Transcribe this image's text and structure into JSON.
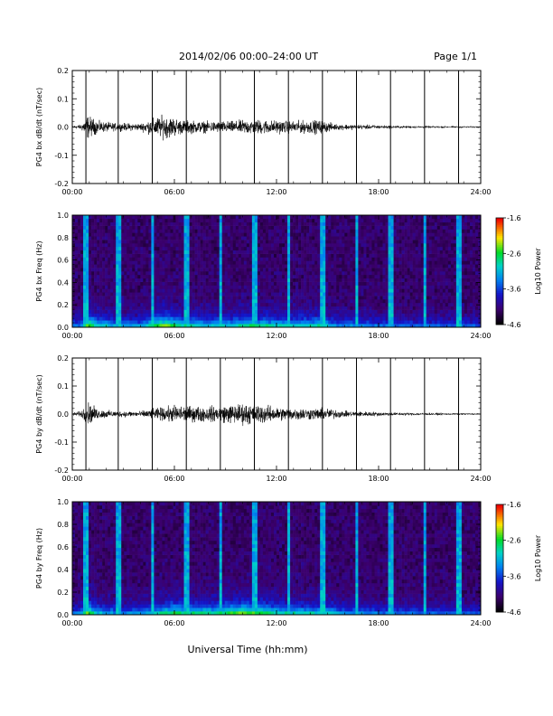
{
  "header": {
    "title": "2014/02/06  00:00–24:00 UT",
    "page": "Page 1/1"
  },
  "footer": {
    "xlabel": "Universal Time (hh:mm)"
  },
  "chart_data": [
    {
      "type": "line",
      "id": "bx-ts",
      "ylabel": "PG4 bx dB/dt (nT/sec)",
      "xlim": [
        0,
        24
      ],
      "ylim": [
        -0.2,
        0.2
      ],
      "xticks": [
        "00:00",
        "06:00",
        "12:00",
        "18:00",
        "24:00"
      ],
      "xtick_values": [
        0,
        6,
        12,
        18,
        24
      ],
      "yticks": [
        "-0.2",
        "-0.1",
        "0.0",
        "0.1",
        "0.2"
      ],
      "ytick_values": [
        -0.2,
        -0.1,
        0.0,
        0.1,
        0.2
      ],
      "spike_hours": [
        0.8,
        2.7,
        4.7,
        6.7,
        8.7,
        10.7,
        12.7,
        14.7,
        16.7,
        18.7,
        20.7,
        22.7
      ],
      "amplitude_envelope": {
        "hours": [
          0,
          0.5,
          0.9,
          1.5,
          2.5,
          4.0,
          4.9,
          5.5,
          6.5,
          8.0,
          9.5,
          10.5,
          11.5,
          13.0,
          14.5,
          15.5,
          17.0,
          18.5,
          20.0,
          22.0,
          24.0
        ],
        "amplitude": [
          0.008,
          0.012,
          0.06,
          0.03,
          0.02,
          0.018,
          0.05,
          0.06,
          0.035,
          0.028,
          0.03,
          0.04,
          0.035,
          0.03,
          0.035,
          0.015,
          0.012,
          0.008,
          0.006,
          0.005,
          0.004
        ]
      }
    },
    {
      "type": "heatmap",
      "id": "bx-spec",
      "ylabel": "PG4 bx Freq (Hz)",
      "colorbar_label": "Log10 Power",
      "xlim": [
        0,
        24
      ],
      "ylim": [
        0,
        1.0
      ],
      "xticks": [
        "00:00",
        "06:00",
        "12:00",
        "18:00",
        "24:00"
      ],
      "xtick_values": [
        0,
        6,
        12,
        18,
        24
      ],
      "yticks": [
        "0.0",
        "0.2",
        "0.4",
        "0.6",
        "0.8",
        "1.0"
      ],
      "ytick_values": [
        0,
        0.2,
        0.4,
        0.6,
        0.8,
        1.0
      ],
      "clim": [
        -4.6,
        -1.6
      ],
      "cticks": [
        "-1.6",
        "-2.6",
        "-3.6",
        "-4.6"
      ],
      "ctick_values": [
        -1.6,
        -2.6,
        -3.6,
        -4.6
      ],
      "spike_hours": [
        0.8,
        2.7,
        4.7,
        6.7,
        8.7,
        10.7,
        12.7,
        14.7,
        16.7,
        18.7,
        20.7,
        22.7
      ]
    },
    {
      "type": "line",
      "id": "by-ts",
      "ylabel": "PG4 by dB/dt (nT/sec)",
      "xlim": [
        0,
        24
      ],
      "ylim": [
        -0.2,
        0.2
      ],
      "xticks": [
        "00:00",
        "06:00",
        "12:00",
        "18:00",
        "24:00"
      ],
      "xtick_values": [
        0,
        6,
        12,
        18,
        24
      ],
      "yticks": [
        "-0.2",
        "-0.1",
        "0.0",
        "0.1",
        "0.2"
      ],
      "ytick_values": [
        -0.2,
        -0.1,
        0.0,
        0.1,
        0.2
      ],
      "spike_hours": [
        0.8,
        2.7,
        4.7,
        6.7,
        8.7,
        10.7,
        12.7,
        14.7,
        16.7,
        18.7,
        20.7,
        22.7
      ],
      "amplitude_envelope": {
        "hours": [
          0,
          0.5,
          0.9,
          1.5,
          2.5,
          4.0,
          5.0,
          6.0,
          7.0,
          8.5,
          10.0,
          11.0,
          12.0,
          13.5,
          15.0,
          16.0,
          17.5,
          19.0,
          21.0,
          24.0
        ],
        "amplitude": [
          0.008,
          0.015,
          0.06,
          0.025,
          0.015,
          0.015,
          0.03,
          0.045,
          0.04,
          0.04,
          0.055,
          0.05,
          0.035,
          0.03,
          0.03,
          0.015,
          0.012,
          0.008,
          0.006,
          0.004
        ]
      }
    },
    {
      "type": "heatmap",
      "id": "by-spec",
      "ylabel": "PG4 by Freq (Hz)",
      "colorbar_label": "Log10 Power",
      "xlim": [
        0,
        24
      ],
      "ylim": [
        0,
        1.0
      ],
      "xticks": [
        "00:00",
        "06:00",
        "12:00",
        "18:00",
        "24:00"
      ],
      "xtick_values": [
        0,
        6,
        12,
        18,
        24
      ],
      "yticks": [
        "0.0",
        "0.2",
        "0.4",
        "0.6",
        "0.8",
        "1.0"
      ],
      "ytick_values": [
        0,
        0.2,
        0.4,
        0.6,
        0.8,
        1.0
      ],
      "clim": [
        -4.6,
        -1.6
      ],
      "cticks": [
        "-1.6",
        "-2.6",
        "-3.6",
        "-4.6"
      ],
      "ctick_values": [
        -1.6,
        -2.6,
        -3.6,
        -4.6
      ],
      "spike_hours": [
        0.8,
        2.7,
        4.7,
        6.7,
        8.7,
        10.7,
        12.7,
        14.7,
        16.7,
        18.7,
        20.7,
        22.7
      ]
    }
  ]
}
